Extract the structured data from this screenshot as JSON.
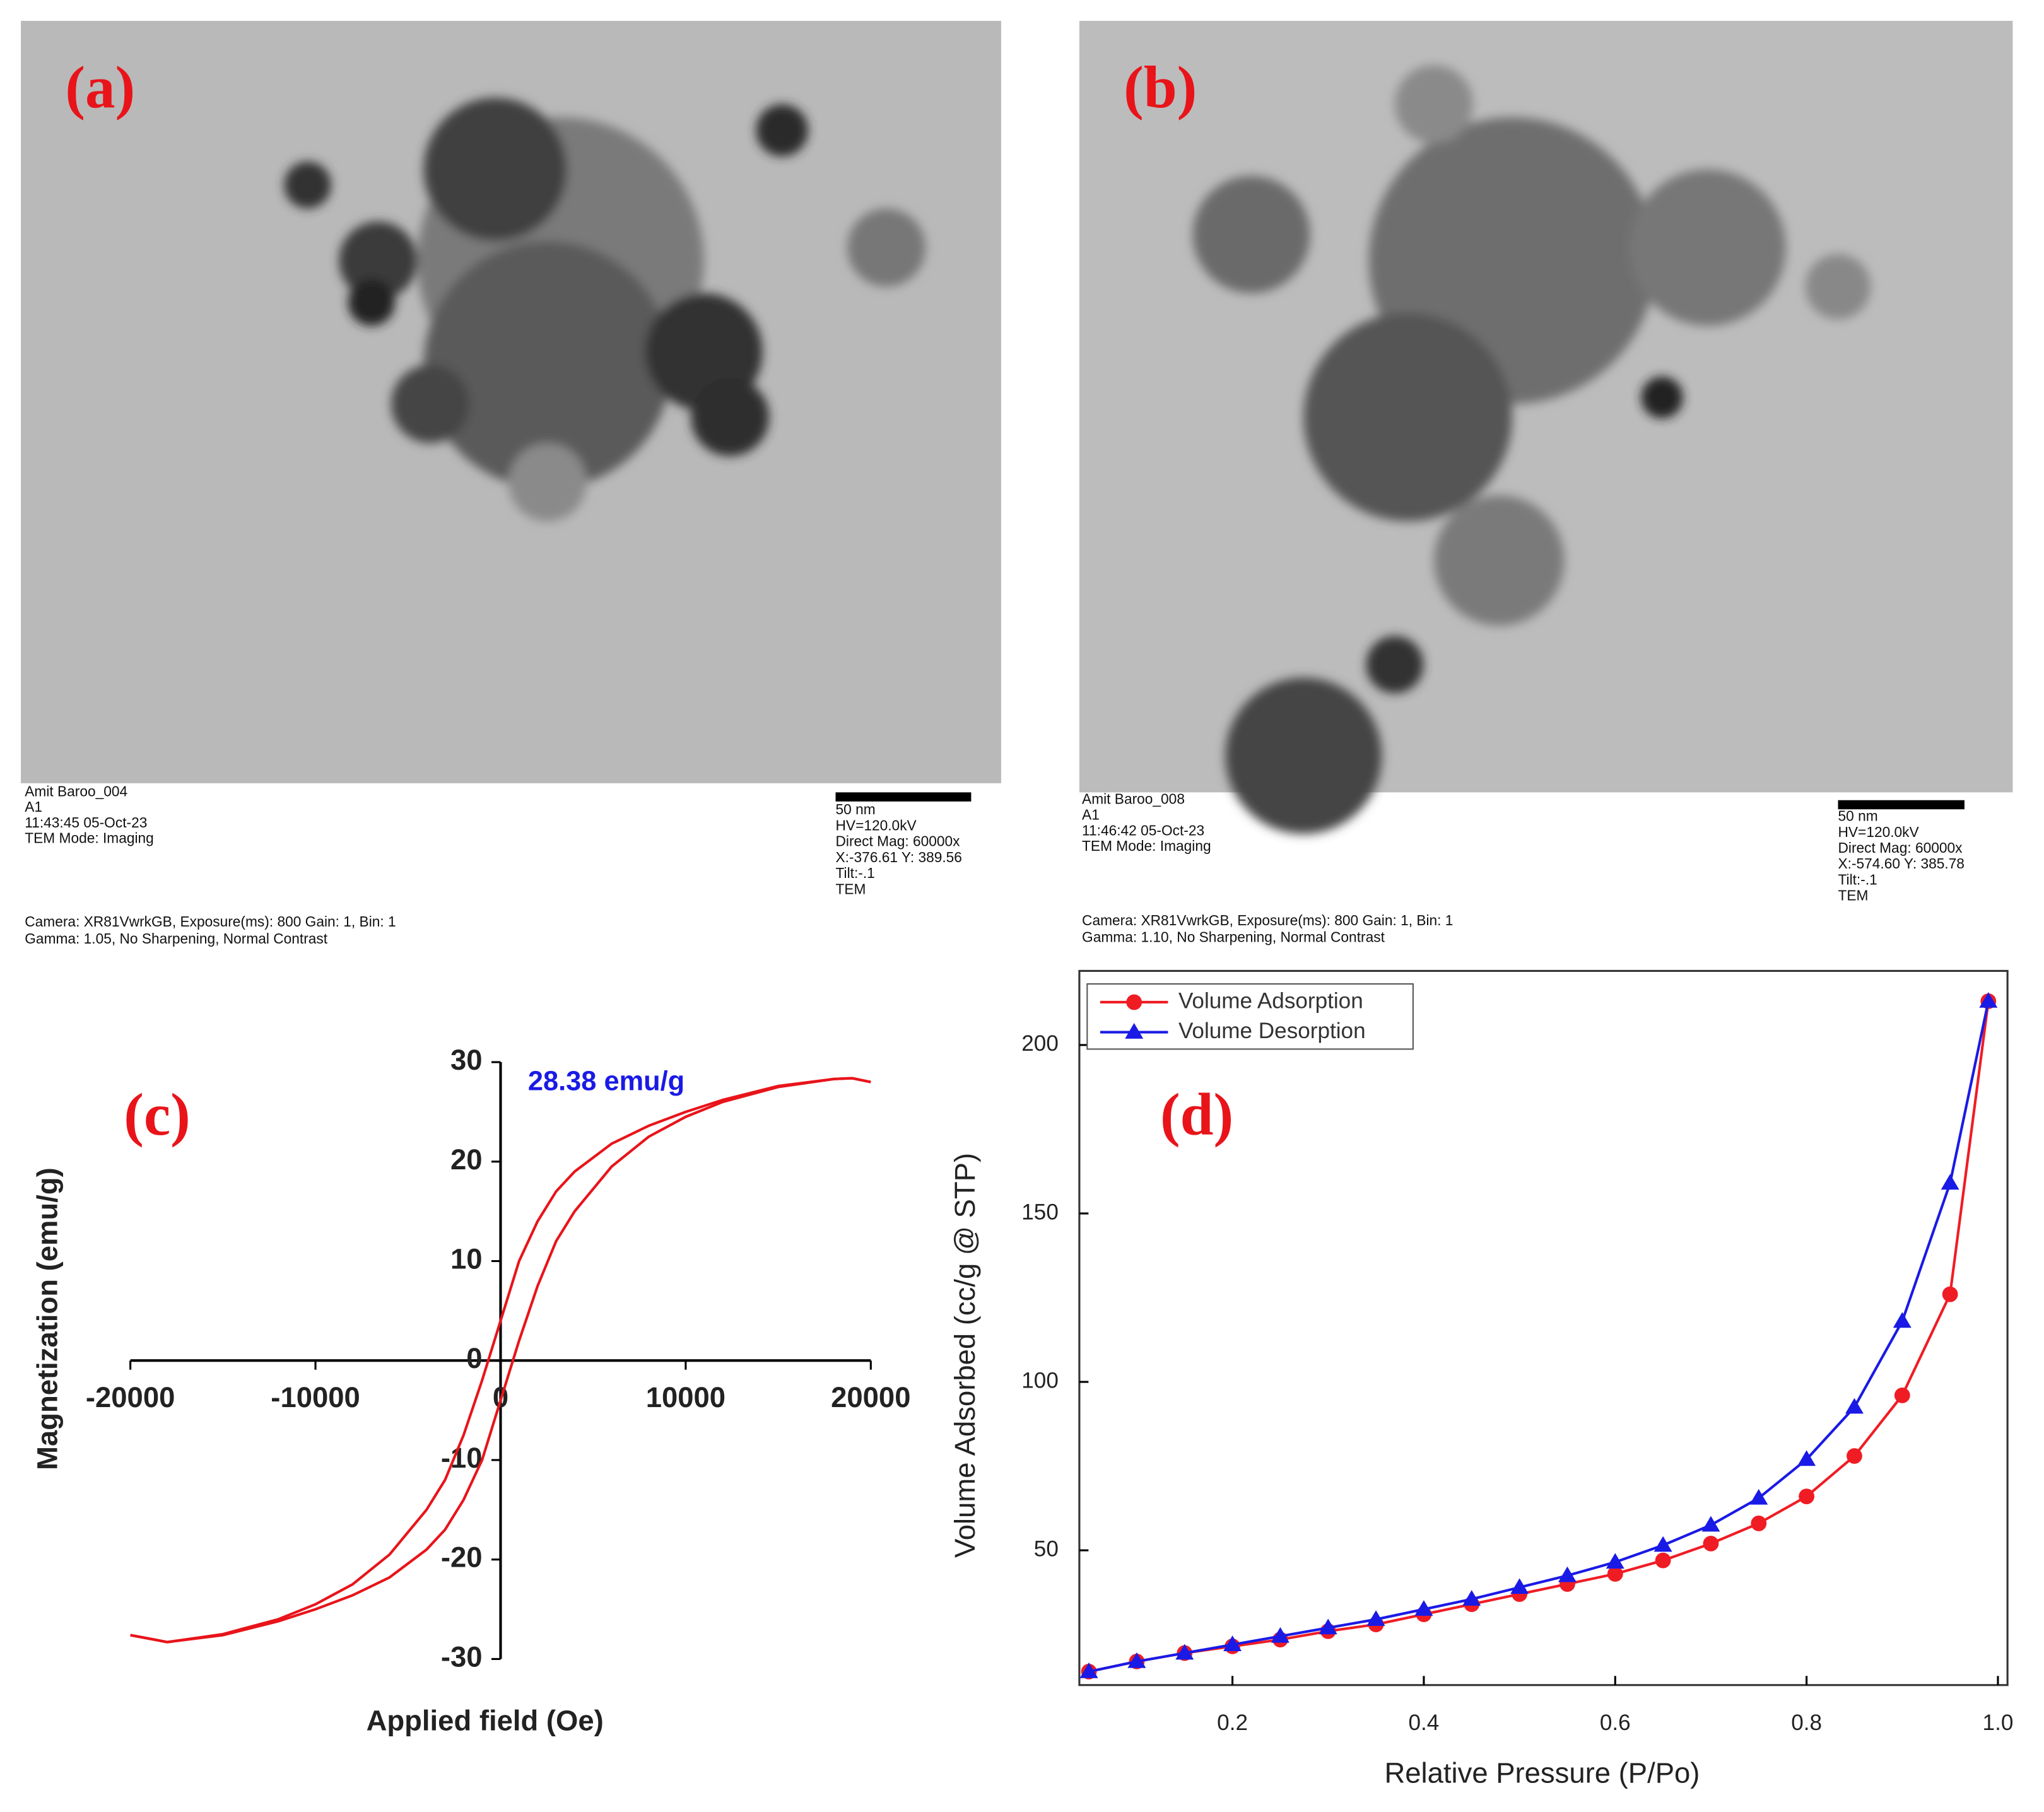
{
  "panels": [
    {
      "label": "(a)",
      "left": [
        "Amit Baroo_004",
        "A1",
        "11:43:45 05-Oct-23",
        "TEM Mode: Imaging"
      ],
      "right": [
        "50 nm",
        "HV=120.0kV",
        "Direct Mag: 60000x",
        "X:-376.61 Y: 389.56",
        "Tilt:-.1",
        "TEM"
      ],
      "bottom": [
        "Camera: XR81VwrkGB, Exposure(ms): 800 Gain: 1, Bin:  1",
        "Gamma: 1.05, No Sharpening, Normal Contrast"
      ]
    },
    {
      "label": "(b)",
      "left": [
        "Amit Baroo_008",
        "A1",
        "11:46:42 05-Oct-23",
        "TEM Mode: Imaging"
      ],
      "right": [
        "50 nm",
        "HV=120.0kV",
        "Direct Mag: 60000x",
        "X:-574.60 Y: 385.78",
        "Tilt:-.1",
        "TEM"
      ],
      "bottom": [
        "Camera: XR81VwrkGB, Exposure(ms): 800 Gain: 1, Bin:  1",
        "Gamma: 1.10, No Sharpening, Normal Contrast"
      ]
    }
  ],
  "chart_data": [
    {
      "type": "line",
      "label": "(c)",
      "annotation": "28.38 emu/g",
      "xlabel": "Applied field (Oe)",
      "ylabel": "Magnetization (emu/g)",
      "xlim": [
        -20000,
        20000
      ],
      "xticks": [
        -20000,
        -10000,
        0,
        10000,
        20000
      ],
      "ylim": [
        -30,
        30
      ],
      "yticks": [
        -30,
        -20,
        -10,
        0,
        10,
        20,
        30
      ],
      "x": [
        -20000,
        -18000,
        -15000,
        -12000,
        -10000,
        -8000,
        -6000,
        -4000,
        -3000,
        -2000,
        -1000,
        -500,
        0,
        500,
        1000,
        2000,
        3000,
        4000,
        6000,
        8000,
        10000,
        12000,
        15000,
        18000,
        19000,
        20000
      ],
      "series": [
        {
          "color": "#e8141a",
          "values": [
            -27.6,
            -28.3,
            -27.5,
            -26,
            -24.5,
            -22.5,
            -19.5,
            -15,
            -12,
            -7.5,
            -2,
            1,
            4,
            7,
            10,
            14,
            17,
            19,
            21.8,
            23.6,
            25,
            26.2,
            27.6,
            28.3,
            28.38,
            28
          ]
        },
        {
          "color": "#e8141a",
          "values": [
            -27.6,
            -28.3,
            -27.6,
            -26.2,
            -25,
            -23.6,
            -21.8,
            -19,
            -17,
            -14,
            -10,
            -7,
            -4,
            -1,
            2,
            7.5,
            12,
            15,
            19.5,
            22.5,
            24.5,
            26,
            27.5,
            28.3,
            28.38,
            28
          ]
        }
      ]
    },
    {
      "type": "line",
      "label": "(d)",
      "xlabel": "Relative Pressure (P/Po)",
      "ylabel": "Volume Adsorbed (cc/g @ STP)",
      "legend": "upper left",
      "xlim": [
        0.04,
        1.01
      ],
      "xticks": [
        0.2,
        0.4,
        0.6,
        0.8,
        {
          "value": 1,
          "label": "1.0"
        }
      ],
      "ylim": [
        10,
        222
      ],
      "yticks": [
        50,
        100,
        150,
        200
      ],
      "x": [
        0.05,
        0.1,
        0.15,
        0.2,
        0.25,
        0.3,
        0.35,
        0.4,
        0.45,
        0.5,
        0.55,
        0.6,
        0.65,
        0.7,
        0.75,
        0.8,
        0.85,
        0.9,
        0.95,
        0.99
      ],
      "series": [
        {
          "name": "Volume Adsorption",
          "color": "#f01c24",
          "marker": "circle",
          "values": [
            14,
            17,
            19.5,
            21.5,
            23.5,
            26,
            28,
            31,
            34,
            37,
            40,
            43,
            47,
            52,
            58,
            66,
            78,
            96,
            126,
            213
          ]
        },
        {
          "name": "Volume Desorption",
          "color": "#1a1ae6",
          "marker": "triangle",
          "values": [
            14,
            17,
            19.5,
            22,
            24.5,
            27,
            29.5,
            32.5,
            35.5,
            39,
            42.5,
            46.5,
            51.5,
            57.5,
            65.5,
            77,
            92.5,
            118,
            159,
            213
          ]
        }
      ]
    }
  ]
}
